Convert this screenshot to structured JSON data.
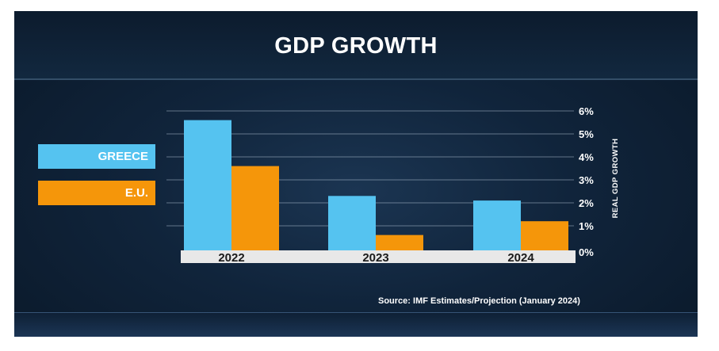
{
  "chart_data": {
    "type": "bar",
    "title": "GDP GROWTH",
    "categories": [
      "2022",
      "2023",
      "2024"
    ],
    "series": [
      {
        "name": "GREECE",
        "color": "#55c3f0",
        "values": [
          5.6,
          2.3,
          2.1
        ]
      },
      {
        "name": "E.U.",
        "color": "#f5960a",
        "values": [
          3.6,
          0.6,
          1.2
        ]
      }
    ],
    "ylabel": "REAL GDP GROWTH",
    "ylim": [
      0,
      6
    ],
    "yticks": [
      "0%",
      "1%",
      "2%",
      "3%",
      "4%",
      "5%",
      "6%"
    ],
    "grid": true,
    "legend_position": "left",
    "source": "Source: IMF Estimates/Projection (January 2024)"
  }
}
